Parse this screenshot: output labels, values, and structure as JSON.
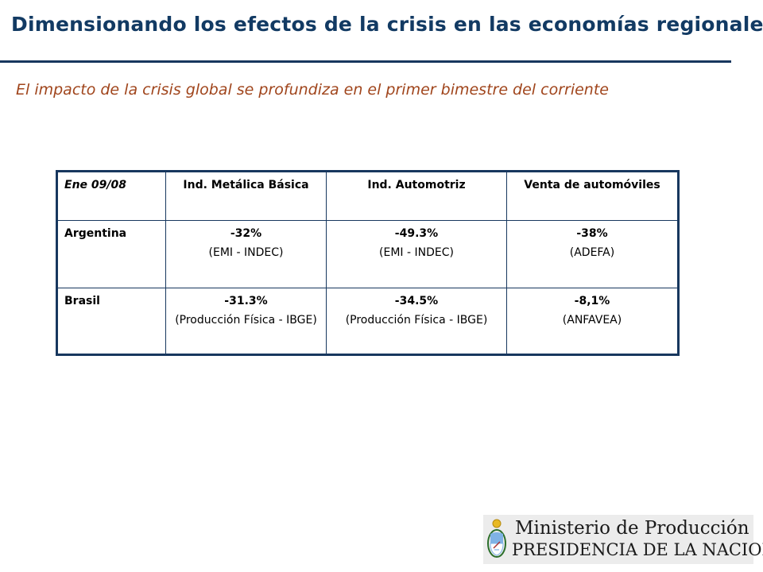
{
  "header": {
    "title": "Dimensionando los efectos de la crisis en las economías regionales",
    "subtitle": "El impacto de la crisis global se profundiza en el primer bimestre del corriente"
  },
  "table": {
    "columns": [
      "Ene 09/08",
      "Ind. Metálica Básica",
      "Ind. Automotriz",
      "Venta de automóviles"
    ],
    "rows": [
      {
        "country": "Argentina",
        "cells": [
          {
            "value": "-32%",
            "source": "(EMI - INDEC)"
          },
          {
            "value": "-49.3%",
            "source": "(EMI - INDEC)"
          },
          {
            "value": "-38%",
            "source": "(ADEFA)"
          }
        ]
      },
      {
        "country": "Brasil",
        "cells": [
          {
            "value": "-31.3%",
            "source": "(Producción Física - IBGE)"
          },
          {
            "value": "-34.5%",
            "source": "(Producción Física - IBGE)"
          },
          {
            "value": "-8,1%",
            "source": "(ANFAVEA)"
          }
        ]
      }
    ]
  },
  "footer": {
    "logo_line1": "Ministerio de Producción",
    "logo_line2": "PRESIDENCIA DE LA NACION",
    "logo_icon": "argentina-coat-of-arms-icon"
  },
  "colors": {
    "title": "#123a63",
    "subtitle": "#a0451c",
    "rule": "#17375e",
    "table_border": "#17375e"
  }
}
